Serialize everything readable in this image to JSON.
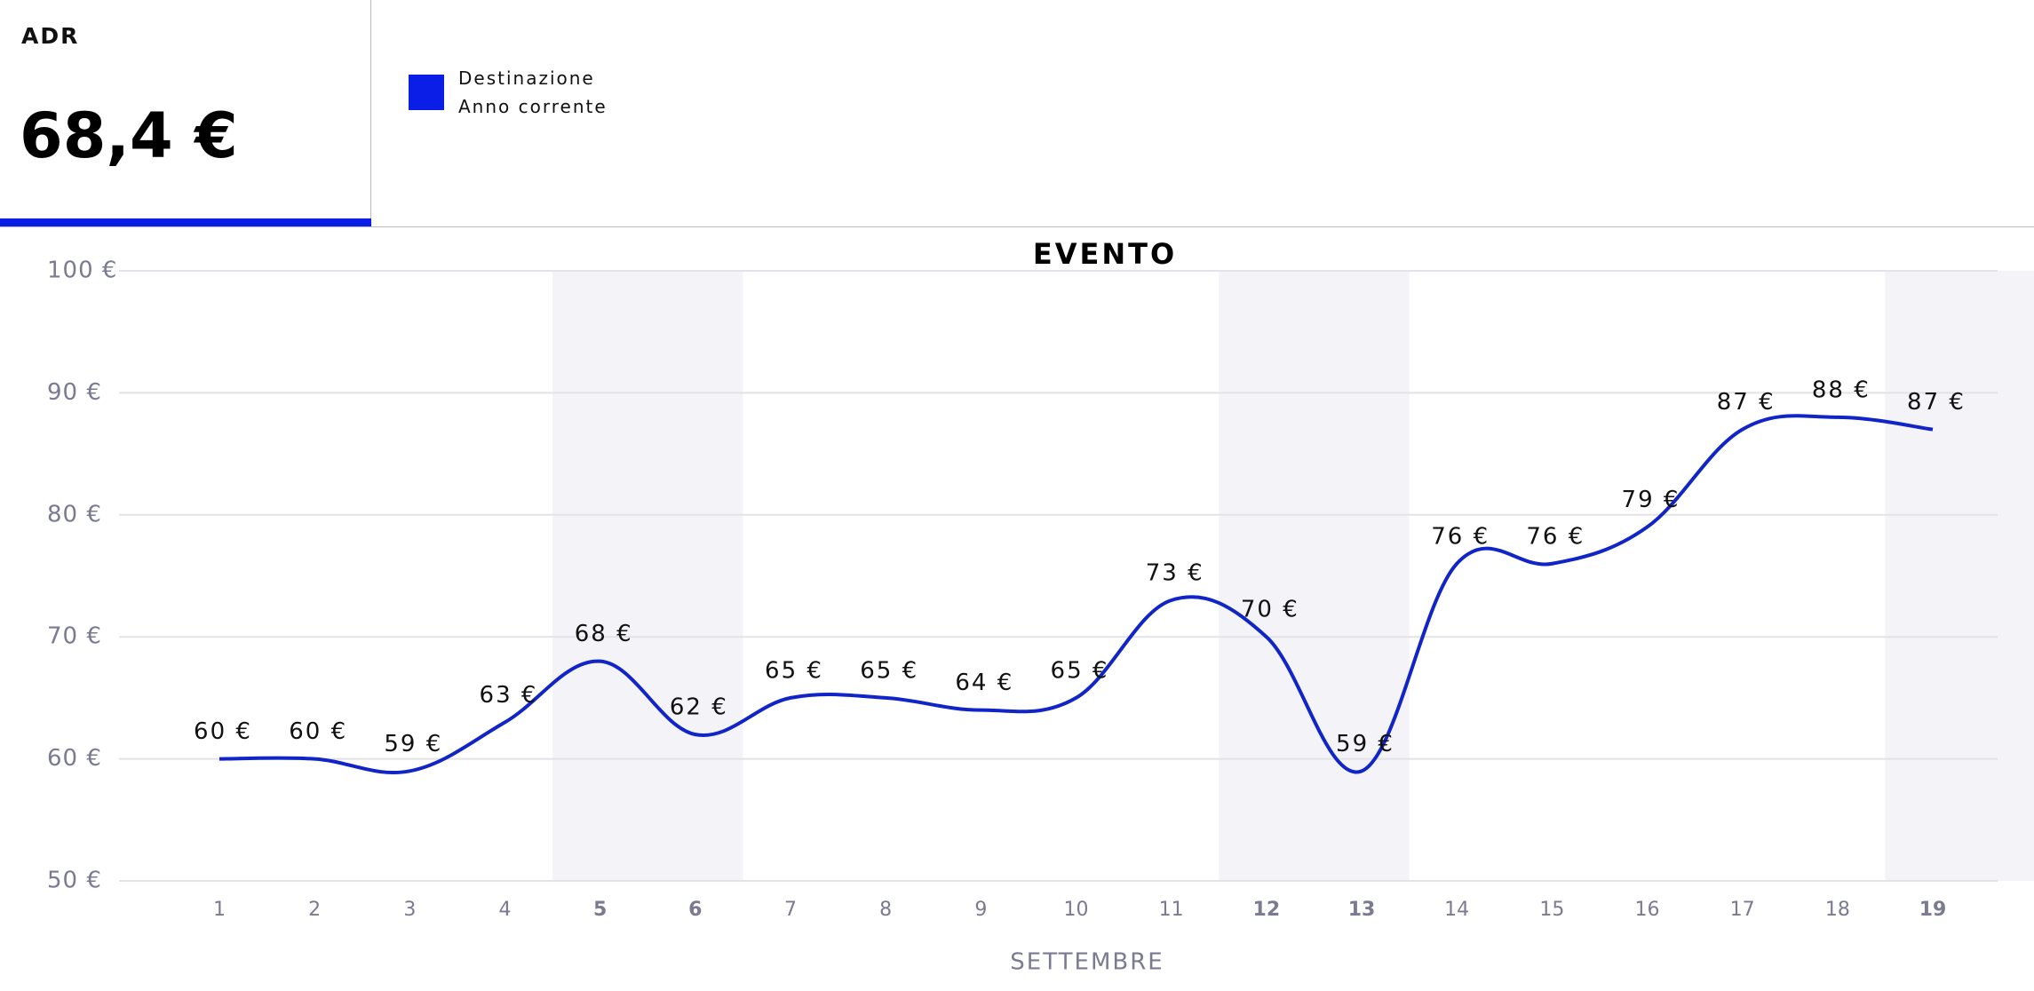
{
  "kpi": {
    "label": "ADR",
    "value": "68,4 €"
  },
  "chart_data": {
    "type": "line",
    "title": "EVENTO",
    "x_label": "SETTEMBRE",
    "categories": [
      "1",
      "2",
      "3",
      "4",
      "5",
      "6",
      "7",
      "8",
      "9",
      "10",
      "11",
      "12",
      "13",
      "14",
      "15",
      "16",
      "17",
      "18",
      "19"
    ],
    "highlight": [
      false,
      false,
      false,
      false,
      true,
      true,
      false,
      false,
      false,
      false,
      false,
      true,
      true,
      false,
      false,
      false,
      false,
      false,
      true
    ],
    "series": [
      {
        "name": "Destinazione Anno corrente",
        "color": "#0a1ee8",
        "line_color": "#1024c8",
        "values": [
          60,
          60,
          59,
          63,
          68,
          62,
          65,
          65,
          64,
          65,
          73,
          70,
          59,
          76,
          76,
          79,
          87,
          88,
          87
        ],
        "value_labels": [
          "60 €",
          "60 €",
          "59 €",
          "63 €",
          "68 €",
          "62 €",
          "65 €",
          "65 €",
          "64 €",
          "65 €",
          "73 €",
          "70 €",
          "59 €",
          "76 €",
          "76 €",
          "79 €",
          "87 €",
          "88 €",
          "87 €"
        ]
      }
    ],
    "ylim": [
      50,
      100
    ],
    "yticks": [
      {
        "value": 50,
        "label": "50 €"
      },
      {
        "value": 60,
        "label": "60 €"
      },
      {
        "value": 70,
        "label": "70 €"
      },
      {
        "value": 80,
        "label": "80 €"
      },
      {
        "value": 90,
        "label": "90 €"
      },
      {
        "value": 100,
        "label": "100 €"
      }
    ],
    "grid": true
  }
}
